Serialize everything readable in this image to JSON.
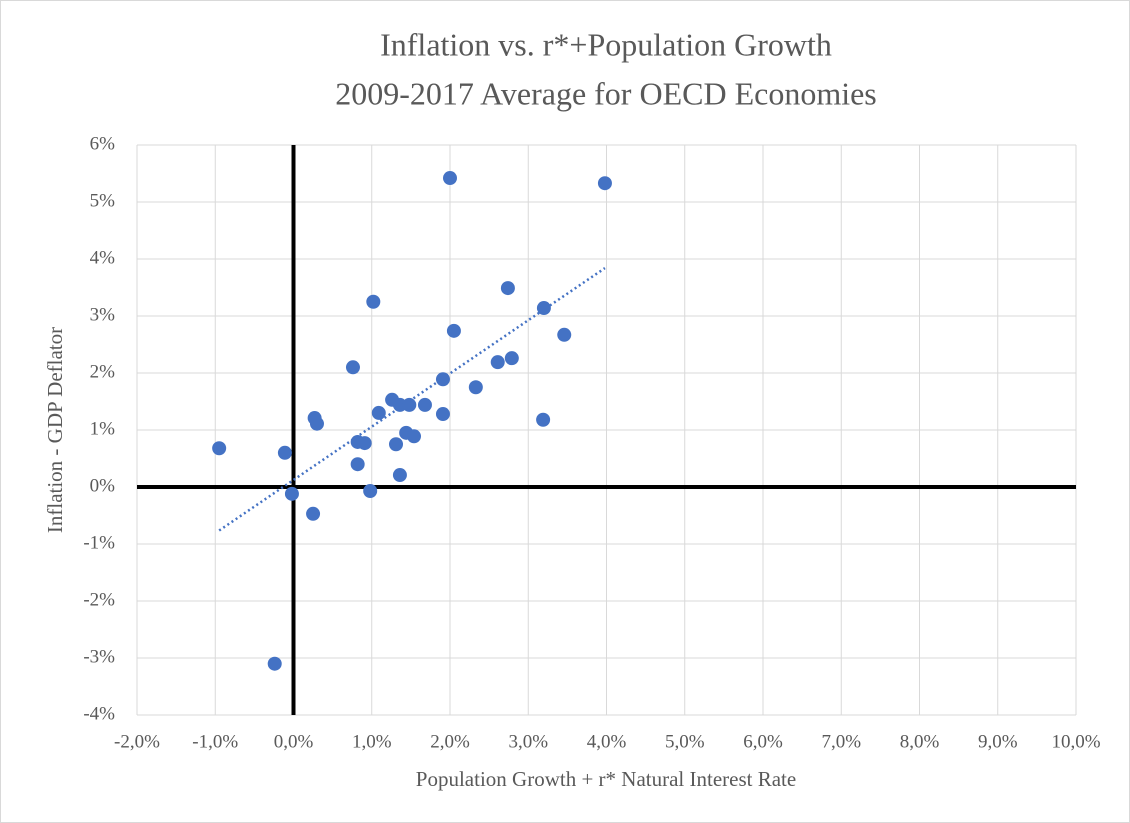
{
  "chart_data": {
    "type": "scatter",
    "title": [
      "Inflation vs. r*+Population Growth",
      "2009-2017 Average for OECD Economies"
    ],
    "x_label": "Population Growth + r* Natural Interest Rate",
    "y_label": "Inflation - GDP Deflator",
    "color": "#4472c4",
    "trendline": true,
    "grid": true,
    "x": [
      -0.95,
      -0.11,
      -0.02,
      -0.24,
      0.25,
      0.27,
      0.3,
      0.76,
      0.82,
      0.82,
      0.91,
      0.98,
      1.02,
      1.09,
      1.26,
      1.31,
      1.36,
      1.36,
      1.44,
      1.48,
      1.54,
      1.68,
      1.91,
      1.91,
      2.0,
      2.05,
      2.33,
      2.61,
      2.74,
      2.79,
      3.2,
      3.19,
      3.46,
      3.98
    ],
    "values": [
      0.68,
      0.6,
      -0.12,
      -3.1,
      -0.47,
      1.21,
      1.11,
      2.1,
      0.79,
      0.4,
      0.77,
      -0.07,
      3.25,
      1.3,
      1.53,
      0.75,
      1.44,
      0.21,
      0.95,
      1.44,
      0.89,
      1.44,
      1.89,
      1.28,
      5.42,
      2.74,
      1.75,
      2.19,
      3.49,
      2.26,
      3.14,
      1.18,
      2.67,
      5.33
    ],
    "xlim": [
      -2,
      10
    ],
    "ylim": [
      -4,
      6
    ],
    "xticks": [
      {
        "value": -2,
        "label": "-2,0%"
      },
      {
        "value": -1,
        "label": "-1,0%"
      },
      {
        "value": 0,
        "label": "0,0%"
      },
      {
        "value": 1,
        "label": "1,0%"
      },
      {
        "value": 2,
        "label": "2,0%"
      },
      {
        "value": 3,
        "label": "3,0%"
      },
      {
        "value": 4,
        "label": "4,0%"
      },
      {
        "value": 5,
        "label": "5,0%"
      },
      {
        "value": 6,
        "label": "6,0%"
      },
      {
        "value": 7,
        "label": "7,0%"
      },
      {
        "value": 8,
        "label": "8,0%"
      },
      {
        "value": 9,
        "label": "9,0%"
      },
      {
        "value": 10,
        "label": "10,0%"
      }
    ],
    "yticks": [
      {
        "value": -4,
        "label": "-4%"
      },
      {
        "value": -3,
        "label": "-3%"
      },
      {
        "value": -2,
        "label": "-2%"
      },
      {
        "value": -1,
        "label": "-1%"
      },
      {
        "value": 0,
        "label": "0%"
      },
      {
        "value": 1,
        "label": "1%"
      },
      {
        "value": 2,
        "label": "2%"
      },
      {
        "value": 3,
        "label": "3%"
      },
      {
        "value": 4,
        "label": "4%"
      },
      {
        "value": 5,
        "label": "5%"
      },
      {
        "value": 6,
        "label": "6%"
      }
    ]
  }
}
